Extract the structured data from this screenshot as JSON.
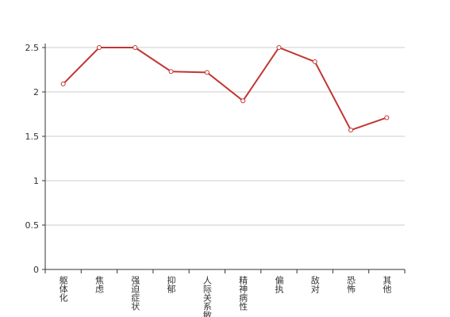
{
  "chart_data": {
    "type": "line",
    "categories": [
      "躯体化",
      "焦虑",
      "强迫症状",
      "抑郁",
      "人际关系敏感",
      "精神病性",
      "偏执",
      "敌对",
      "恐怖",
      "其他"
    ],
    "values": [
      2.09,
      2.5,
      2.5,
      2.23,
      2.22,
      1.9,
      2.5,
      2.34,
      1.57,
      1.71
    ],
    "color": "#c23531",
    "ylim": [
      0,
      2.5
    ],
    "yticks": [
      0,
      0.5,
      1,
      1.5,
      2,
      2.5
    ],
    "grid": true
  }
}
